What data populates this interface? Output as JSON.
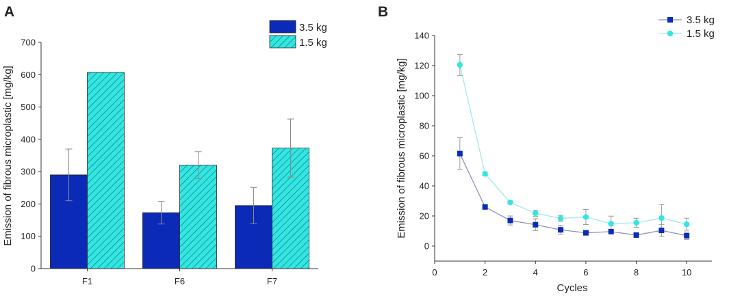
{
  "panels": {
    "a": {
      "label": "A"
    },
    "b": {
      "label": "B"
    }
  },
  "chart_data": [
    {
      "type": "bar",
      "categories": [
        "F1",
        "F6",
        "F7"
      ],
      "series": [
        {
          "name": "3.5 kg",
          "color": "#0b2ab8",
          "values": [
            290,
            173,
            195
          ],
          "errors": [
            80,
            35,
            56
          ]
        },
        {
          "name": "1.5 kg",
          "color": "#33e6e2",
          "hatch": true,
          "values": [
            607,
            320,
            373
          ],
          "errors": [
            0,
            42,
            90
          ]
        }
      ],
      "title": "",
      "xlabel": "",
      "ylabel": "Emission of fibrous microplastic [mg/kg]",
      "ylim": [
        0,
        700
      ],
      "yticks": [
        0,
        100,
        200,
        300,
        400,
        500,
        600,
        700
      ],
      "legend": "top-right",
      "grid": false
    },
    {
      "type": "line",
      "x": [
        1,
        2,
        3,
        4,
        5,
        6,
        7,
        8,
        9,
        10
      ],
      "series": [
        {
          "name": "3.5 kg",
          "color": "#0b2ab8",
          "line_color": "#8c8fb8",
          "marker": "square",
          "values": [
            61.5,
            26,
            17,
            14.2,
            10.8,
            8.8,
            9.6,
            7.3,
            10.4,
            6.9
          ],
          "errors": [
            10.5,
            1.0,
            3.0,
            4.0,
            3.0,
            1.2,
            1.4,
            1.0,
            4.0,
            2.5
          ]
        },
        {
          "name": "1.5 kg",
          "color": "#33e6e2",
          "line_color": "#9fe9ea",
          "marker": "circle",
          "values": [
            120.5,
            48,
            29,
            21.8,
            18.4,
            19.3,
            14.9,
            15.5,
            18.6,
            14.5
          ],
          "errors": [
            7.0,
            1.0,
            1.0,
            2.0,
            2.0,
            5.0,
            5.0,
            3.0,
            9.0,
            4.0
          ]
        }
      ],
      "title": "",
      "xlabel": "Cycles",
      "ylabel": "Emission of fibrous microplastic [mg/kg]",
      "xlim": [
        0,
        11
      ],
      "ylim": [
        -10,
        140
      ],
      "xticks": [
        0,
        2,
        4,
        6,
        8,
        10
      ],
      "yticks": [
        0,
        20,
        40,
        60,
        80,
        100,
        120,
        140
      ],
      "legend": "top-right",
      "grid": false
    }
  ]
}
